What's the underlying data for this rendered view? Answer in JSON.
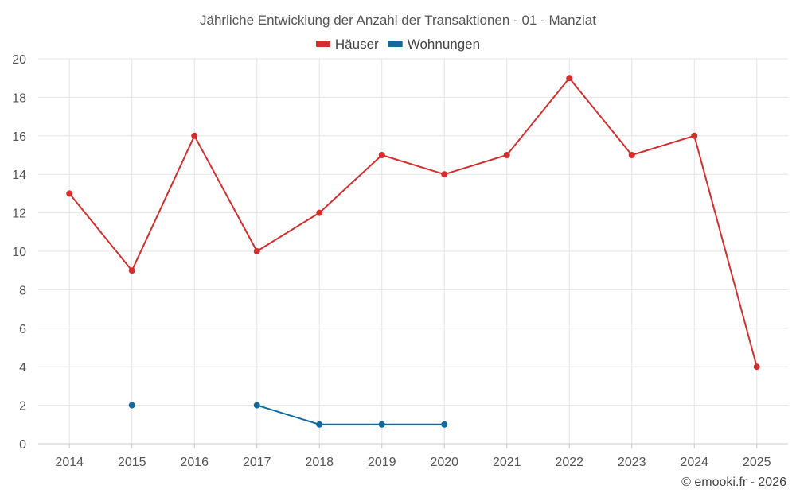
{
  "chart_data": {
    "type": "line",
    "title": "Jährliche Entwicklung der Anzahl der Transaktionen - 01 - Manziat",
    "categories": [
      "2014",
      "2015",
      "2016",
      "2017",
      "2018",
      "2019",
      "2020",
      "2021",
      "2022",
      "2023",
      "2024",
      "2025"
    ],
    "series": [
      {
        "name": "Häuser",
        "color": "#d32f2f",
        "values": [
          13,
          9,
          16,
          10,
          12,
          15,
          14,
          15,
          19,
          15,
          16,
          4
        ]
      },
      {
        "name": "Wohnungen",
        "color": "#0f6aa0",
        "values": [
          null,
          2,
          null,
          2,
          1,
          1,
          1,
          null,
          null,
          null,
          null,
          null
        ]
      }
    ],
    "ylim": [
      0,
      20
    ],
    "yticks": [
      0,
      2,
      4,
      6,
      8,
      10,
      12,
      14,
      16,
      18,
      20
    ],
    "xlabel": "",
    "ylabel": "",
    "grid": true,
    "legend_position": "top-center"
  },
  "credit": "© emooki.fr - 2026"
}
